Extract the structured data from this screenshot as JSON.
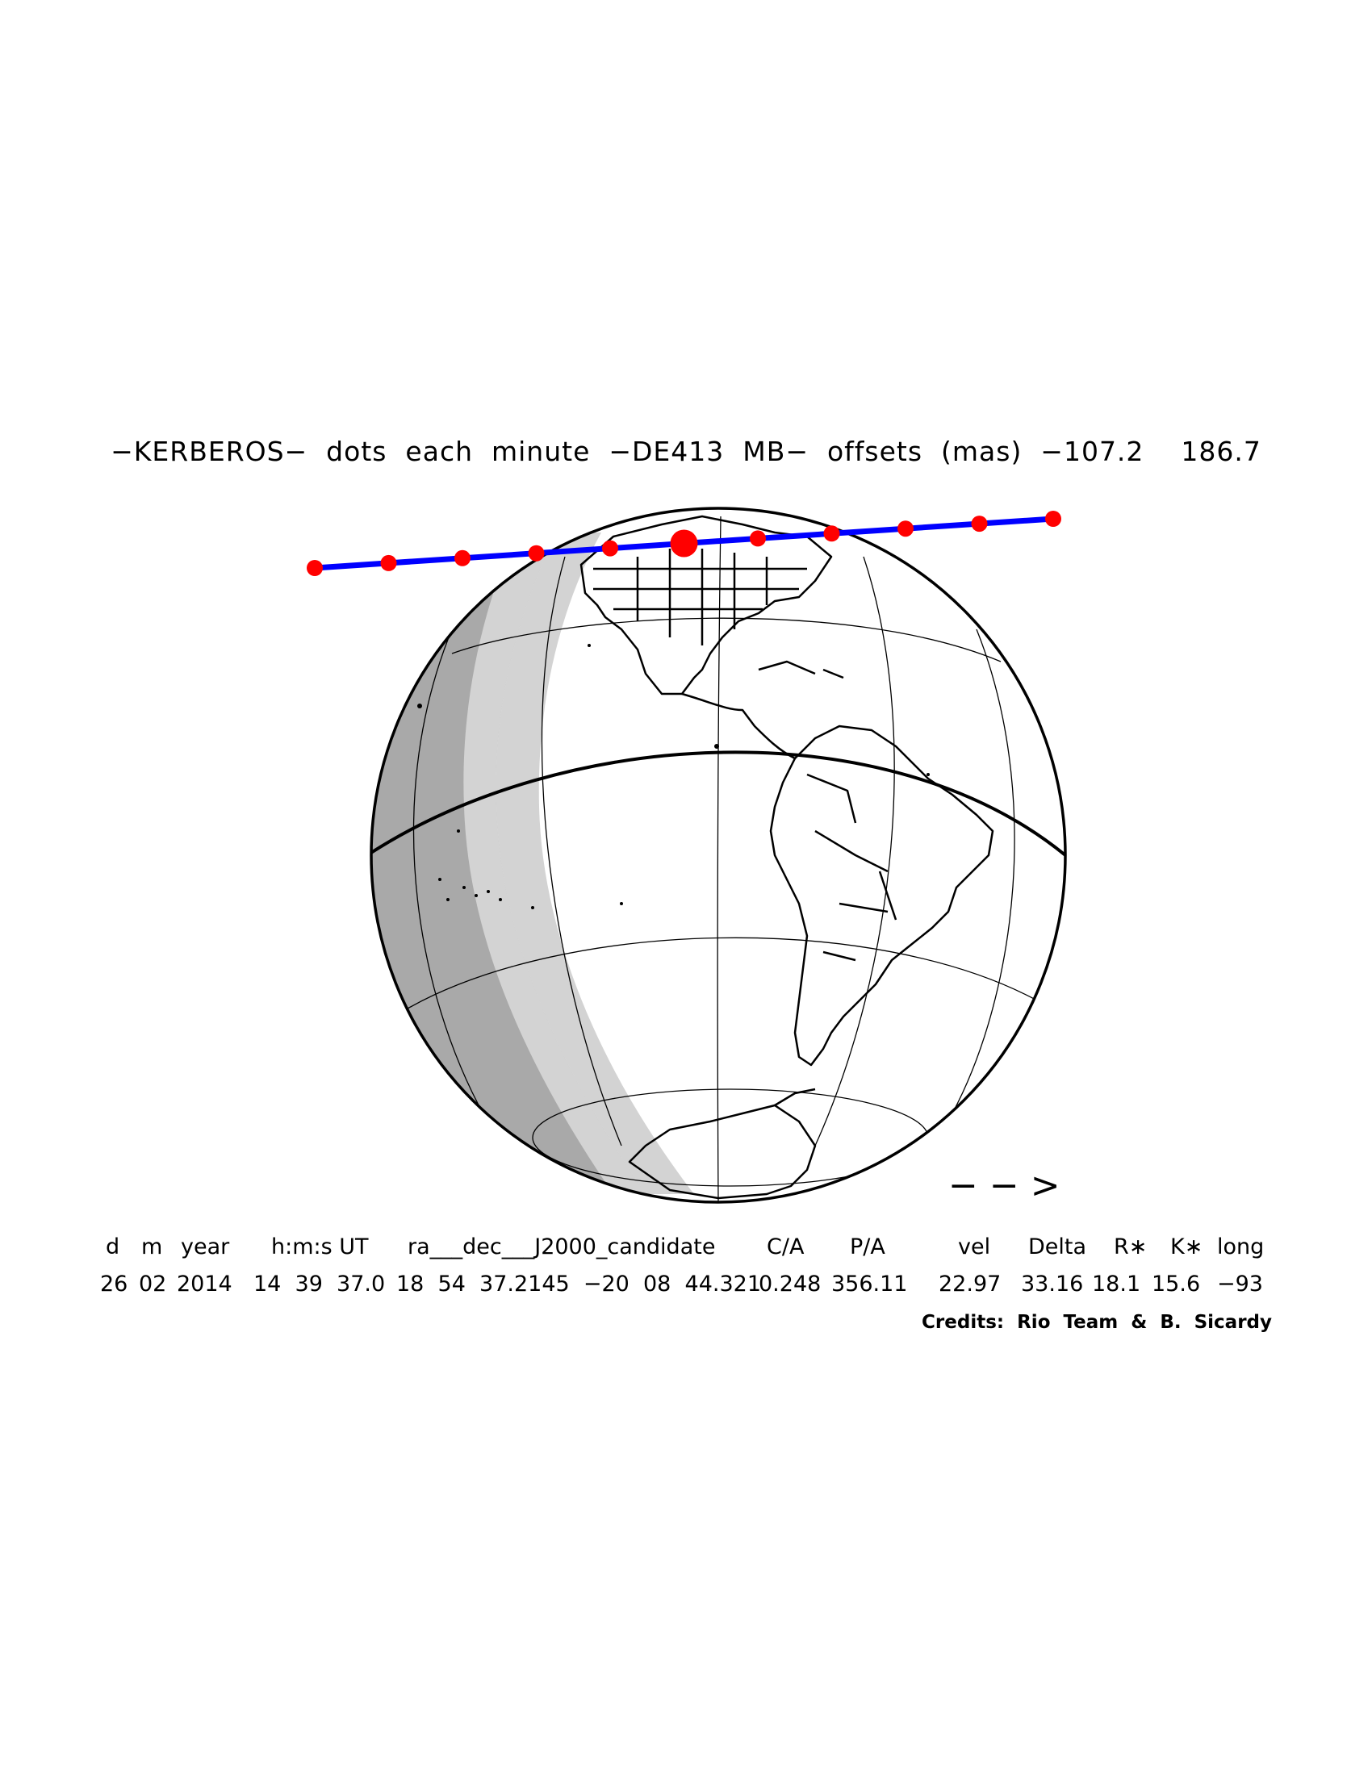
{
  "title": "−KERBEROS−  dots  each  minute  −DE413  MB−  offsets  (mas)  −107.2    186.7",
  "direction_arrow": "− − >",
  "table": {
    "headers": [
      "d",
      "m",
      "year",
      "h:m:s UT",
      "ra___dec___J2000_candidate",
      "C/A",
      "P/A",
      "vel",
      "Delta",
      "R∗",
      "K∗",
      "long"
    ],
    "values": [
      "26",
      "02",
      "2014",
      "14  39  37.0",
      "18  54  37.2145  −20  08  44.321",
      "0.248",
      "356.11",
      "22.97",
      "33.16",
      "18.1",
      "15.6",
      "−93"
    ]
  },
  "credits": "Credits:  Rio  Team  &  B.  Sicardy",
  "colors": {
    "track": "#0000ff",
    "minute_dots": "#ff0000",
    "night": "#a9a9a9",
    "twilight": "#d3d3d3",
    "outline": "#000000"
  },
  "track": {
    "minute_dot_count": 11,
    "central_dot_index": 5
  }
}
